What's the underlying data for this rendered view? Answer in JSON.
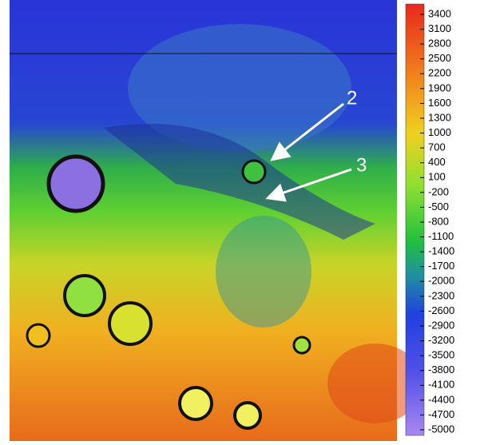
{
  "colorbar": {
    "ticks": [
      3400,
      3100,
      2800,
      2500,
      2200,
      1900,
      1600,
      1300,
      1000,
      700,
      400,
      100,
      -200,
      -500,
      -800,
      -1100,
      -1400,
      -1700,
      -2000,
      -2300,
      -2600,
      -2900,
      -3200,
      -3500,
      -3800,
      -4100,
      -4400,
      -4700,
      -5000
    ]
  },
  "annotations": [
    {
      "label": "2"
    },
    {
      "label": "3"
    }
  ]
}
